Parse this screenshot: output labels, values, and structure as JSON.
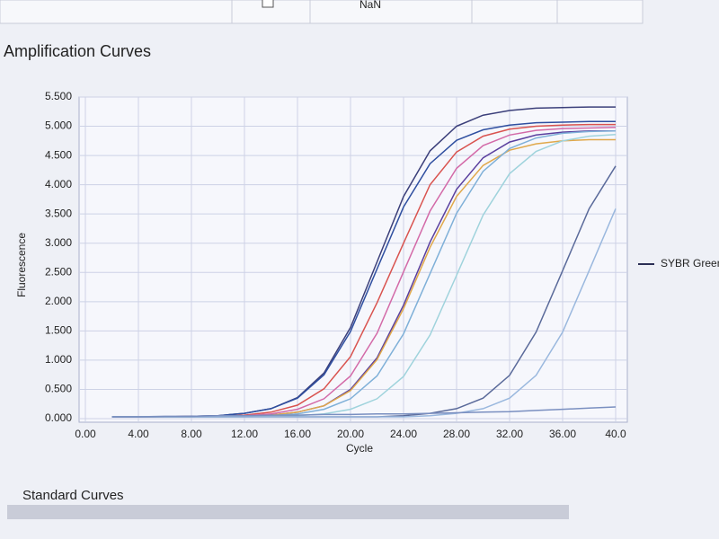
{
  "top_row": {
    "cell": "NaN"
  },
  "section_title": "Amplification Curves",
  "next_section": "Standard Curves",
  "chart_data": {
    "type": "line",
    "xlabel": "Cycle",
    "ylabel": "Fluorescence",
    "legend": "SYBR Green",
    "legend_color": "#2b2f55",
    "grid": true,
    "xlim": [
      0,
      40
    ],
    "ylim": [
      0,
      5.5
    ],
    "xticks": [
      {
        "value": 0,
        "label": "0.00"
      },
      {
        "value": 4,
        "label": "4.00"
      },
      {
        "value": 8,
        "label": "8.00"
      },
      {
        "value": 12,
        "label": "12.00"
      },
      {
        "value": 16,
        "label": "16.00"
      },
      {
        "value": 20,
        "label": "20.00"
      },
      {
        "value": 24,
        "label": "24.00"
      },
      {
        "value": 28,
        "label": "28.00"
      },
      {
        "value": 32,
        "label": "32.00"
      },
      {
        "value": 36,
        "label": "36.00"
      },
      {
        "value": 40,
        "label": "40.0"
      }
    ],
    "yticks": [
      {
        "value": 0,
        "label": "0.000"
      },
      {
        "value": 0.5,
        "label": "0.500"
      },
      {
        "value": 1,
        "label": "1.000"
      },
      {
        "value": 1.5,
        "label": "1.500"
      },
      {
        "value": 2,
        "label": "2.000"
      },
      {
        "value": 2.5,
        "label": "2.500"
      },
      {
        "value": 3,
        "label": "3.000"
      },
      {
        "value": 3.5,
        "label": "3.500"
      },
      {
        "value": 4,
        "label": "4.000"
      },
      {
        "value": 4.5,
        "label": "4.500"
      },
      {
        "value": 5,
        "label": "5.000"
      },
      {
        "value": 5.5,
        "label": "5.500"
      }
    ],
    "x": [
      2,
      4,
      6,
      8,
      10,
      12,
      14,
      16,
      18,
      20,
      22,
      24,
      26,
      28,
      30,
      32,
      34,
      36,
      38,
      40
    ],
    "series": [
      {
        "color": "#3b3f7a",
        "values": [
          0.03,
          0.03,
          0.03,
          0.04,
          0.05,
          0.09,
          0.17,
          0.36,
          0.78,
          1.56,
          2.68,
          3.8,
          4.58,
          5.0,
          5.19,
          5.27,
          5.31,
          5.32,
          5.33,
          5.33
        ]
      },
      {
        "color": "#d9534f",
        "values": [
          0.03,
          0.03,
          0.03,
          0.04,
          0.04,
          0.06,
          0.11,
          0.23,
          0.51,
          1.06,
          1.98,
          3.0,
          4.0,
          4.56,
          4.83,
          4.95,
          5.0,
          5.02,
          5.03,
          5.03
        ]
      },
      {
        "color": "#2f4fa0",
        "values": [
          0.03,
          0.03,
          0.03,
          0.04,
          0.05,
          0.09,
          0.17,
          0.35,
          0.75,
          1.49,
          2.56,
          3.62,
          4.36,
          4.76,
          4.94,
          5.02,
          5.06,
          5.07,
          5.08,
          5.08
        ]
      },
      {
        "color": "#d36aa8",
        "values": [
          0.03,
          0.03,
          0.03,
          0.03,
          0.04,
          0.05,
          0.08,
          0.16,
          0.34,
          0.73,
          1.46,
          2.51,
          3.55,
          4.28,
          4.67,
          4.85,
          4.93,
          4.96,
          4.97,
          4.98
        ]
      },
      {
        "color": "#5a3f9e",
        "values": [
          0.03,
          0.03,
          0.03,
          0.03,
          0.04,
          0.04,
          0.06,
          0.11,
          0.22,
          0.5,
          1.04,
          1.94,
          3.02,
          3.92,
          4.46,
          4.73,
          4.85,
          4.9,
          4.92,
          4.92
        ]
      },
      {
        "color": "#e0a84a",
        "values": [
          0.03,
          0.03,
          0.03,
          0.03,
          0.04,
          0.04,
          0.06,
          0.11,
          0.22,
          0.48,
          1.01,
          1.88,
          2.93,
          3.8,
          4.33,
          4.59,
          4.7,
          4.75,
          4.77,
          4.77
        ]
      },
      {
        "color": "#7fb0d8",
        "values": [
          0.03,
          0.03,
          0.03,
          0.03,
          0.03,
          0.04,
          0.05,
          0.08,
          0.16,
          0.34,
          0.73,
          1.45,
          2.48,
          3.51,
          4.23,
          4.62,
          4.8,
          4.88,
          4.91,
          4.92
        ]
      },
      {
        "color": "#9fd3dc",
        "values": [
          0.03,
          0.03,
          0.03,
          0.03,
          0.03,
          0.03,
          0.04,
          0.05,
          0.08,
          0.16,
          0.34,
          0.72,
          1.43,
          2.45,
          3.48,
          4.19,
          4.57,
          4.75,
          4.83,
          4.86
        ]
      },
      {
        "color": "#5a6a9a",
        "values": [
          0.03,
          0.03,
          0.03,
          0.03,
          0.03,
          0.03,
          0.03,
          0.03,
          0.03,
          0.03,
          0.03,
          0.05,
          0.09,
          0.17,
          0.35,
          0.74,
          1.48,
          2.53,
          3.59,
          4.32
        ]
      },
      {
        "color": "#9ab8de",
        "values": [
          0.03,
          0.03,
          0.03,
          0.03,
          0.03,
          0.03,
          0.03,
          0.03,
          0.03,
          0.03,
          0.03,
          0.03,
          0.05,
          0.09,
          0.17,
          0.35,
          0.74,
          1.48,
          2.53,
          3.59
        ]
      },
      {
        "color": "#7a8fc0",
        "values": [
          0.03,
          0.03,
          0.04,
          0.04,
          0.05,
          0.05,
          0.06,
          0.06,
          0.07,
          0.07,
          0.08,
          0.08,
          0.09,
          0.1,
          0.11,
          0.12,
          0.14,
          0.16,
          0.18,
          0.2
        ]
      }
    ]
  }
}
